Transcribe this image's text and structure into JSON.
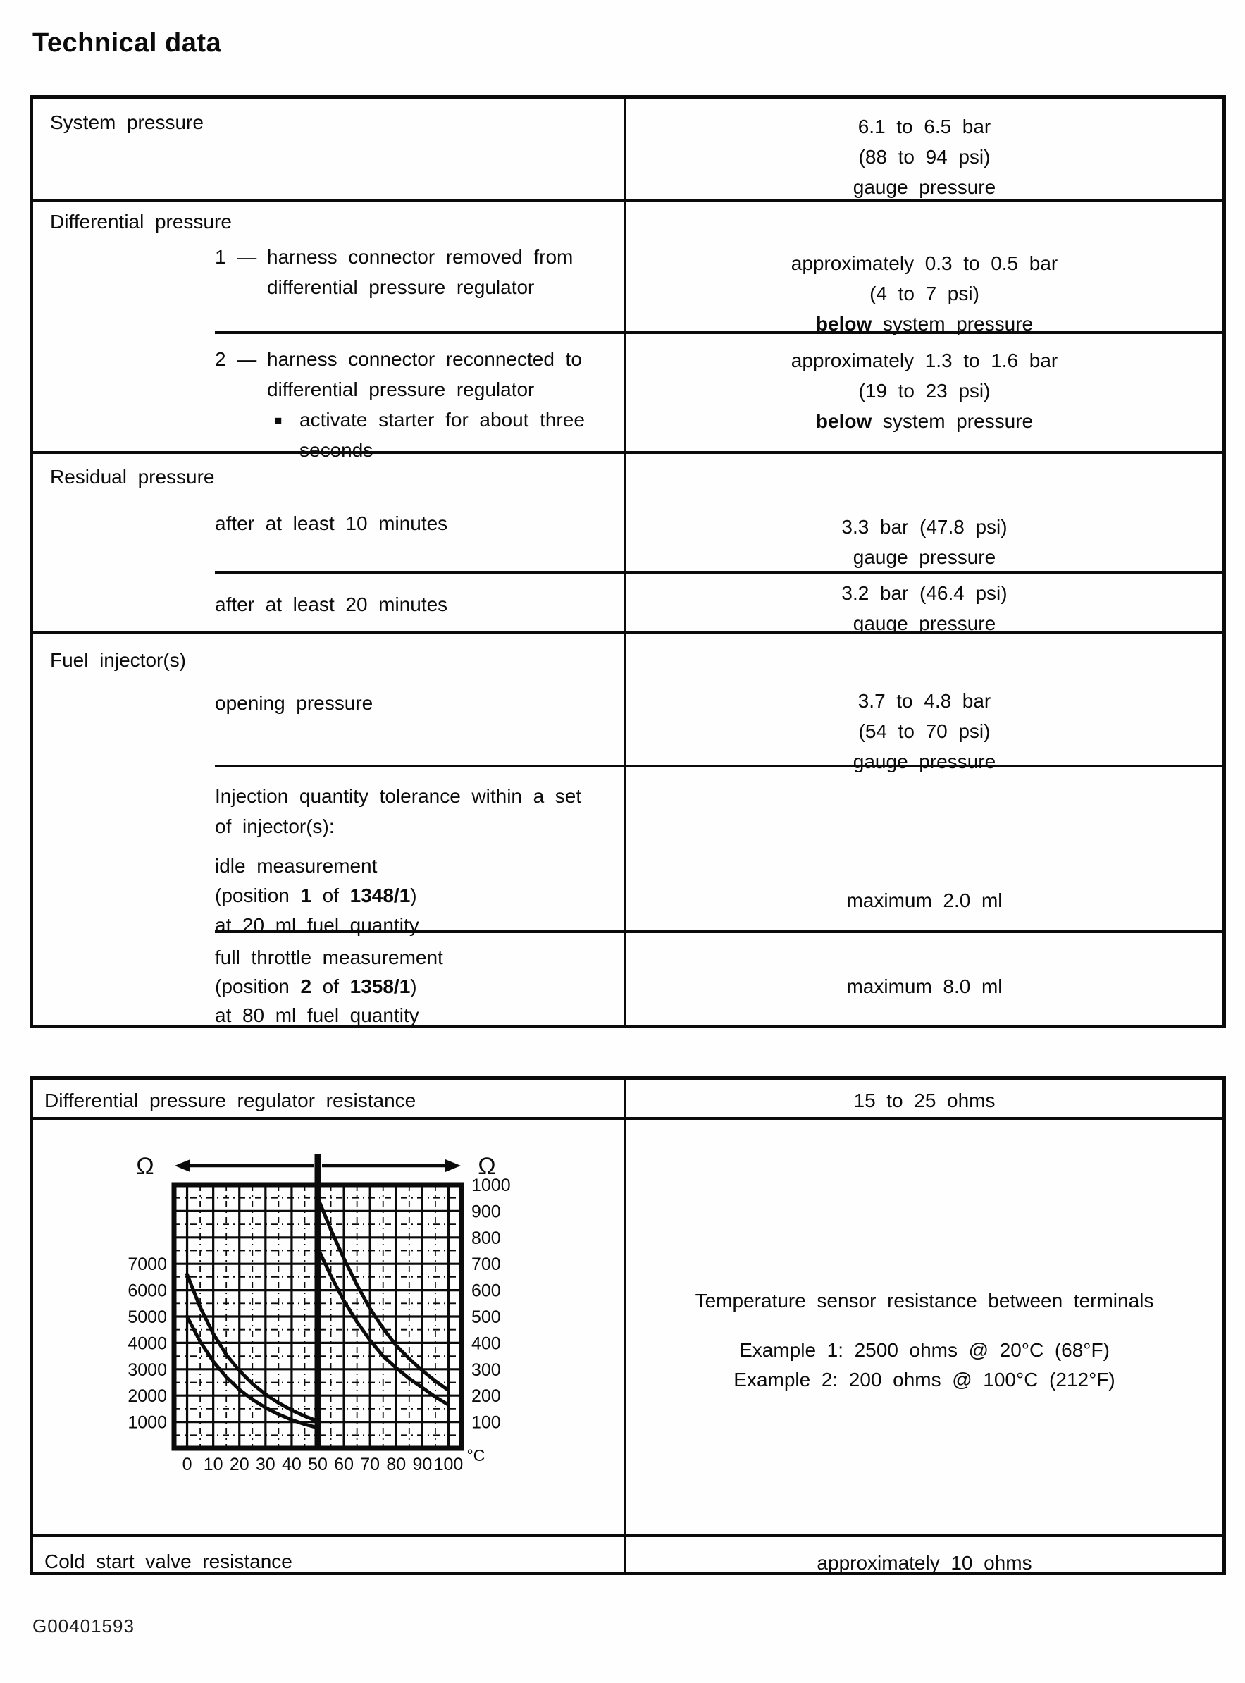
{
  "page": {
    "title": "Technical data",
    "figure_code": "G00401593"
  },
  "table1": {
    "system": {
      "label": "System pressure",
      "v1": "6.1 to 6.5 bar",
      "v2": "(88 to 94 psi)",
      "v3": "gauge pressure"
    },
    "differential": {
      "label": "Differential pressure",
      "row1": {
        "num": "1 —",
        "l1": "harness connector removed from",
        "l2": "differential pressure regulator",
        "v1": "approximately 0.3 to 0.5 bar",
        "v2": "(4 to 7 psi)",
        "v3b": "below",
        "v3": " system pressure"
      },
      "row2": {
        "num": "2 —",
        "l1": "harness connector reconnected to",
        "l2": "differential pressure regulator",
        "bullet": "■",
        "b1": "activate starter for about three",
        "b2": "seconds",
        "v1": "approximately 1.3 to 1.6 bar",
        "v2": "(19 to 23 psi)",
        "v3b": "below",
        "v3": " system pressure"
      }
    },
    "residual": {
      "label": "Residual pressure",
      "row1": {
        "l1": "after at least 10 minutes",
        "v1": "3.3 bar (47.8 psi)",
        "v2": "gauge pressure"
      },
      "row2": {
        "l1": "after at least 20 minutes",
        "v1": "3.2 bar (46.4 psi)",
        "v2": "gauge pressure"
      }
    },
    "fuel": {
      "label": "Fuel injector(s)",
      "row1": {
        "l1": "opening pressure",
        "v1": "3.7 to 4.8 bar",
        "v2": "(54 to 70 psi)",
        "v3": "gauge pressure"
      },
      "row2": {
        "h1": "Injection quantity tolerance within a set",
        "h2": "of injector(s):",
        "l1": "idle measurement",
        "p1": "(position ",
        "p1b": "1",
        "p2": " of ",
        "p2b": "1348/1",
        "p3": ")",
        "l3": "at 20 ml fuel quantity",
        "v1": "maximum 2.0 ml"
      },
      "row3": {
        "l1": "full throttle measurement",
        "p1": "(position ",
        "p1b": "2",
        "p2": " of ",
        "p2b": "1358/1",
        "p3": ")",
        "l3": "at 80 ml fuel quantity",
        "v1": "maximum 8.0 ml"
      }
    }
  },
  "table2": {
    "row1": {
      "label": "Differential pressure regulator resistance",
      "value": "15 to 25 ohms"
    },
    "row2": {
      "t1": "Temperature sensor resistance between terminals",
      "e1": "Example 1: 2500 ohms @ 20°C (68°F)",
      "e2": "Example 2: 200 ohms @ 100°C (212°F)"
    },
    "row3": {
      "label": "Cold start valve resistance",
      "value": "approximately 10 ohms"
    }
  },
  "chart_data": {
    "type": "line",
    "description": "Temperature sensor resistance tolerance band; left half reads on left ohm scale (0-50°C), right half on right ohm scale (50-100°C)",
    "x_unit": "°C",
    "x_ticks": [
      0,
      10,
      20,
      30,
      40,
      50,
      60,
      70,
      80,
      90,
      100
    ],
    "center_line_x": 50,
    "grid": true,
    "left_axis": {
      "symbol": "Ω",
      "ticks": [
        7000,
        6000,
        5000,
        4000,
        3000,
        2000,
        1000
      ],
      "range": [
        0,
        10000
      ]
    },
    "right_axis": {
      "symbol": "Ω",
      "ticks": [
        1000,
        900,
        800,
        700,
        600,
        500,
        400,
        300,
        200,
        100
      ],
      "range": [
        0,
        1000
      ]
    },
    "series": [
      {
        "name": "band-upper-0-50C",
        "scale": "left",
        "points": [
          [
            0,
            6600
          ],
          [
            5,
            5350
          ],
          [
            10,
            4350
          ],
          [
            15,
            3550
          ],
          [
            20,
            2950
          ],
          [
            25,
            2450
          ],
          [
            30,
            2050
          ],
          [
            35,
            1720
          ],
          [
            40,
            1450
          ],
          [
            45,
            1220
          ],
          [
            50,
            1030
          ]
        ]
      },
      {
        "name": "band-lower-0-50C",
        "scale": "left",
        "points": [
          [
            0,
            5000
          ],
          [
            5,
            4050
          ],
          [
            10,
            3300
          ],
          [
            15,
            2700
          ],
          [
            20,
            2230
          ],
          [
            25,
            1850
          ],
          [
            30,
            1540
          ],
          [
            35,
            1290
          ],
          [
            40,
            1080
          ],
          [
            45,
            910
          ],
          [
            50,
            780
          ]
        ]
      },
      {
        "name": "band-upper-50-100C",
        "scale": "right",
        "points": [
          [
            50,
            950
          ],
          [
            55,
            830
          ],
          [
            60,
            720
          ],
          [
            65,
            620
          ],
          [
            70,
            530
          ],
          [
            75,
            455
          ],
          [
            80,
            390
          ],
          [
            85,
            340
          ],
          [
            90,
            295
          ],
          [
            95,
            255
          ],
          [
            100,
            220
          ]
        ]
      },
      {
        "name": "band-lower-50-100C",
        "scale": "right",
        "points": [
          [
            50,
            760
          ],
          [
            55,
            655
          ],
          [
            60,
            560
          ],
          [
            65,
            480
          ],
          [
            70,
            410
          ],
          [
            75,
            350
          ],
          [
            80,
            305
          ],
          [
            85,
            265
          ],
          [
            90,
            230
          ],
          [
            95,
            195
          ],
          [
            100,
            165
          ]
        ]
      }
    ]
  }
}
